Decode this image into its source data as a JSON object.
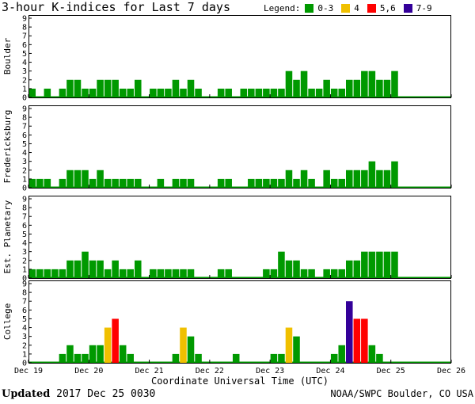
{
  "title": "3-hour K-indices for Last 7 days",
  "legend": {
    "label": "Legend:",
    "entries": [
      {
        "label": "0-3",
        "color": "#009900"
      },
      {
        "label": "4",
        "color": "#f0c000"
      },
      {
        "label": "5,6",
        "color": "#ff0000"
      },
      {
        "label": "7-9",
        "color": "#330099"
      }
    ]
  },
  "footer": {
    "updated_label": "Updated",
    "updated_time": "2017 Dec 25 0030",
    "source": "NOAA/SWPC Boulder, CO USA"
  },
  "chart_data": {
    "type": "bar",
    "xlabel": "Coordinate Universal Time (UTC)",
    "x_ticks": [
      "Dec 19",
      "Dec 20",
      "Dec 21",
      "Dec 22",
      "Dec 23",
      "Dec 24",
      "Dec 25",
      "Dec 26"
    ],
    "ylim": [
      0,
      9
    ],
    "y_ticks": [
      0,
      1,
      2,
      3,
      4,
      5,
      6,
      7,
      8,
      9
    ],
    "intervals_per_day": 8,
    "grid": false,
    "legend_position": "top-right",
    "panels": [
      {
        "name": "Boulder",
        "values": [
          1,
          0,
          1,
          0,
          1,
          2,
          2,
          1,
          1,
          2,
          2,
          2,
          1,
          1,
          2,
          0,
          1,
          1,
          1,
          2,
          1,
          2,
          1,
          0,
          0,
          1,
          1,
          0,
          1,
          1,
          1,
          1,
          1,
          1,
          3,
          2,
          3,
          1,
          1,
          2,
          1,
          1,
          2,
          2,
          3,
          3,
          2,
          2,
          3
        ]
      },
      {
        "name": "Fredericksburg",
        "values": [
          1,
          1,
          1,
          0,
          1,
          2,
          2,
          2,
          1,
          2,
          1,
          1,
          1,
          1,
          1,
          0,
          0,
          1,
          0,
          1,
          1,
          1,
          0,
          0,
          0,
          1,
          1,
          0,
          0,
          1,
          1,
          1,
          1,
          1,
          2,
          1,
          2,
          1,
          0,
          2,
          1,
          1,
          2,
          2,
          2,
          3,
          2,
          2,
          3
        ]
      },
      {
        "name": "Est. Planetary",
        "values": [
          1,
          1,
          1,
          1,
          1,
          2,
          2,
          3,
          2,
          2,
          1,
          2,
          1,
          1,
          2,
          0,
          1,
          1,
          1,
          1,
          1,
          1,
          0,
          0,
          0,
          1,
          1,
          0,
          0,
          0,
          0,
          1,
          1,
          3,
          2,
          2,
          1,
          1,
          0,
          1,
          1,
          1,
          2,
          2,
          3,
          3,
          3,
          3,
          3
        ]
      },
      {
        "name": "College",
        "values": [
          0,
          0,
          0,
          0,
          1,
          2,
          1,
          1,
          2,
          2,
          4,
          5,
          2,
          1,
          0,
          0,
          0,
          0,
          0,
          1,
          4,
          3,
          1,
          0,
          0,
          0,
          0,
          1,
          0,
          0,
          0,
          0,
          1,
          1,
          4,
          3,
          0,
          0,
          0,
          0,
          1,
          2,
          7,
          5,
          5,
          2,
          1,
          0
        ]
      }
    ]
  }
}
